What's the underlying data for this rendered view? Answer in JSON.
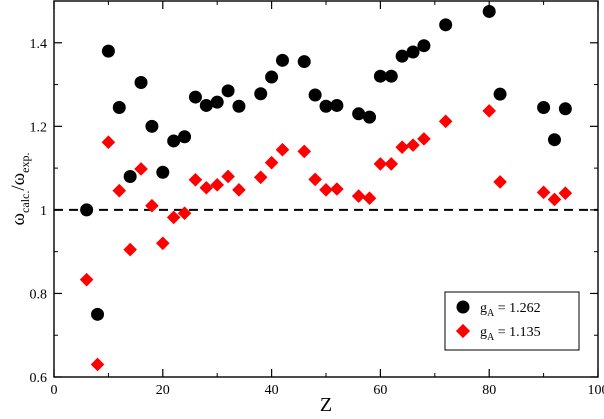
{
  "chart_data": {
    "type": "scatter",
    "xlabel": "Z",
    "ylabel": {
      "base1": "ω",
      "sub1": "calc.",
      "slash": "/",
      "base2": "ω",
      "sub2": "exp."
    },
    "xlim": [
      0,
      100
    ],
    "ylim": [
      0.6,
      1.5
    ],
    "xticks": [
      "0",
      "20",
      "40",
      "60",
      "80",
      "100"
    ],
    "yticks": [
      "0.6",
      "0.8",
      "1",
      "1.2",
      "1.4"
    ],
    "reference_line": {
      "y": 1.0,
      "style": "dashed"
    },
    "legend": {
      "position": "bottom-right",
      "entries": [
        {
          "base": "g",
          "sub": "A",
          "value": " = 1.262"
        },
        {
          "base": "g",
          "sub": "A",
          "value": " = 1.135"
        }
      ]
    },
    "grid": false,
    "series": [
      {
        "marker": "circle",
        "color": "#000000",
        "x": [
          6,
          8,
          10,
          12,
          14,
          16,
          18,
          20,
          22,
          24,
          26,
          28,
          30,
          32,
          34,
          38,
          40,
          42,
          46,
          48,
          50,
          52,
          56,
          58,
          60,
          62,
          64,
          66,
          68,
          72,
          80,
          82,
          90,
          92,
          94
        ],
        "y": [
          1.0,
          0.75,
          1.38,
          1.245,
          1.08,
          1.305,
          1.2,
          1.09,
          1.165,
          1.175,
          1.27,
          1.25,
          1.258,
          1.285,
          1.248,
          1.278,
          1.318,
          1.358,
          1.355,
          1.275,
          1.248,
          1.25,
          1.23,
          1.222,
          1.32,
          1.32,
          1.368,
          1.378,
          1.393,
          1.443,
          1.475,
          1.277,
          1.245,
          1.168,
          1.242
        ]
      },
      {
        "marker": "diamond",
        "color": "#ff0000",
        "x": [
          6,
          8,
          10,
          12,
          14,
          16,
          18,
          20,
          22,
          24,
          26,
          28,
          30,
          32,
          34,
          38,
          40,
          42,
          46,
          48,
          50,
          52,
          56,
          58,
          60,
          62,
          64,
          66,
          68,
          72,
          80,
          82,
          90,
          92,
          94
        ],
        "y": [
          0.833,
          0.63,
          1.162,
          1.046,
          0.905,
          1.098,
          1.01,
          0.92,
          0.982,
          0.992,
          1.072,
          1.053,
          1.06,
          1.08,
          1.048,
          1.078,
          1.113,
          1.144,
          1.14,
          1.073,
          1.048,
          1.05,
          1.033,
          1.028,
          1.11,
          1.11,
          1.15,
          1.155,
          1.17,
          1.212,
          1.237,
          1.067,
          1.042,
          1.025,
          1.04
        ]
      }
    ]
  }
}
